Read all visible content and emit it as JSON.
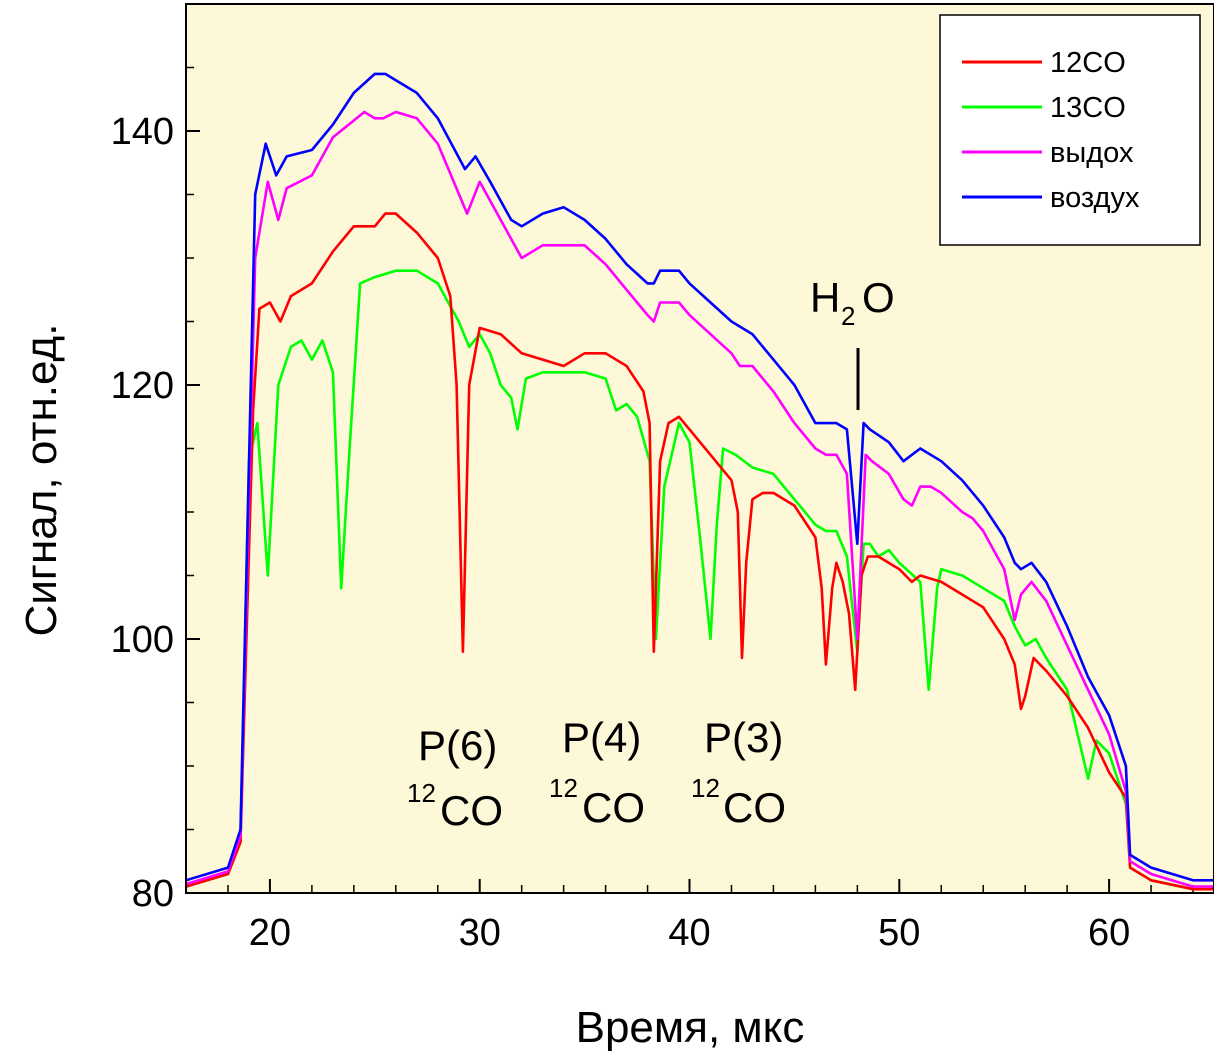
{
  "chart_data": {
    "type": "line",
    "xlabel": "Время, мкс",
    "ylabel": "Сигнал, отн.ед.",
    "xlim": [
      16,
      65
    ],
    "ylim": [
      80,
      150
    ],
    "xticks": [
      20,
      30,
      40,
      50,
      60
    ],
    "yticks": [
      80,
      100,
      120,
      140
    ],
    "background": "#fdf8d8",
    "legend_position": "top-right",
    "series": [
      {
        "name": "12CO",
        "color": "#ff0000",
        "x": [
          16,
          18,
          18.6,
          19.2,
          19.5,
          20,
          20.5,
          21,
          22,
          23,
          24,
          25,
          25.5,
          26,
          27,
          28,
          28.6,
          28.9,
          29.2,
          29.5,
          30,
          31,
          32,
          33,
          34,
          35,
          36,
          37,
          37.8,
          38.1,
          38.3,
          38.6,
          39,
          39.5,
          40,
          41,
          42,
          42.3,
          42.5,
          42.7,
          43,
          43.5,
          44,
          45,
          46,
          46.3,
          46.5,
          46.8,
          47,
          47.3,
          47.6,
          47.9,
          48.2,
          48.5,
          49,
          50,
          50.6,
          51,
          52,
          53,
          54,
          55,
          55.5,
          55.8,
          56,
          56.4,
          57,
          58,
          59,
          60,
          60.8,
          61,
          62,
          64,
          65
        ],
        "y": [
          80.5,
          81.5,
          84,
          118,
          126,
          126.5,
          125,
          127,
          128,
          130.5,
          132.5,
          132.5,
          133.5,
          133.5,
          132,
          130,
          127,
          120,
          99,
          120,
          124.5,
          124,
          122.5,
          122,
          121.5,
          122.5,
          122.5,
          121.5,
          119.5,
          117,
          99,
          114,
          117,
          117.5,
          116.5,
          114.5,
          112.5,
          110,
          98.5,
          106,
          111,
          111.5,
          111.5,
          110.5,
          108,
          104,
          98,
          104,
          106,
          104.5,
          102,
          96,
          105,
          106.5,
          106.5,
          105.5,
          104.5,
          105,
          104.5,
          103.5,
          102.5,
          100,
          98,
          94.5,
          95.5,
          98.5,
          97.5,
          95.5,
          93,
          89.5,
          87.5,
          82,
          81,
          80.3,
          80.3
        ]
      },
      {
        "name": "13CO",
        "color": "#00ff00",
        "x": [
          16,
          18,
          18.6,
          19,
          19.4,
          19.9,
          20.4,
          21,
          21.5,
          22,
          22.5,
          23,
          23.4,
          23.8,
          24.3,
          25,
          26,
          27,
          28,
          29,
          29.5,
          30,
          30.5,
          31,
          31.5,
          31.8,
          32.2,
          33,
          34,
          35,
          36,
          36.5,
          37,
          37.5,
          38.1,
          38.4,
          38.8,
          39.5,
          40,
          40.5,
          41,
          41.3,
          41.6,
          42.2,
          43,
          44,
          45,
          46,
          46.5,
          47,
          47.5,
          48,
          48.3,
          48.6,
          49,
          49.5,
          50,
          51,
          51.4,
          51.8,
          52,
          53,
          54,
          55,
          55.5,
          56,
          56.5,
          57,
          58,
          59,
          59.4,
          60,
          60.8,
          61,
          62,
          64,
          65
        ],
        "y": [
          80.5,
          81.5,
          84,
          114,
          117,
          105,
          120,
          123,
          123.5,
          122,
          123.5,
          121,
          104,
          115,
          128,
          128.5,
          129,
          129,
          128,
          125,
          123,
          124,
          122.5,
          120,
          119,
          116.5,
          120.5,
          121,
          121,
          121,
          120.5,
          118,
          118.5,
          117.5,
          114,
          100,
          112,
          117,
          115.5,
          108,
          100,
          109,
          115,
          114.5,
          113.5,
          113,
          111,
          109,
          108.5,
          108.5,
          106.5,
          99,
          107.5,
          107.5,
          106.5,
          107,
          106,
          104.5,
          96,
          104,
          105.5,
          105,
          104,
          103,
          101,
          99.5,
          100,
          98.5,
          96,
          89,
          92,
          91,
          87,
          82,
          81,
          80.3,
          80.3
        ]
      },
      {
        "name": "выдох",
        "color": "#ff00ff",
        "x": [
          16,
          18,
          18.6,
          19.3,
          19.9,
          20.4,
          20.8,
          22,
          23,
          24.5,
          25,
          25.4,
          26,
          27,
          28,
          29.4,
          30,
          30.5,
          31,
          32,
          33,
          34.5,
          35,
          36,
          37,
          38,
          38.3,
          38.6,
          39.5,
          40,
          41,
          42,
          42.4,
          43,
          44,
          45,
          46,
          46.5,
          47,
          47.5,
          48,
          48.4,
          48.7,
          49.5,
          50.2,
          50.6,
          51,
          51.5,
          52,
          53,
          53.5,
          54,
          55,
          55.5,
          55.8,
          56.3,
          57,
          58,
          59,
          60,
          60.8,
          61,
          62,
          64,
          65
        ],
        "y": [
          80.7,
          81.7,
          84.5,
          130,
          136,
          133,
          135.5,
          136.5,
          139.5,
          141.5,
          141,
          141,
          141.5,
          141,
          139,
          133.5,
          136,
          134.5,
          133,
          130,
          131,
          131,
          131,
          129.5,
          127.5,
          125.5,
          125,
          126.5,
          126.5,
          125.5,
          124,
          122.5,
          121.5,
          121.5,
          119.5,
          117,
          115,
          114.5,
          114.5,
          113,
          100,
          114.5,
          114,
          113,
          111,
          110.5,
          112,
          112,
          111.5,
          110,
          109.5,
          108.5,
          105.5,
          101.5,
          103.5,
          104.5,
          103,
          99.5,
          96,
          92.5,
          88,
          82.5,
          81.5,
          80.5,
          80.5
        ]
      },
      {
        "name": "воздух",
        "color": "#0000ff",
        "x": [
          16,
          18,
          18.6,
          19.3,
          19.8,
          20.3,
          20.8,
          22,
          23,
          24,
          25,
          25.5,
          26,
          27,
          28,
          29.3,
          29.8,
          30.5,
          31.5,
          32,
          33,
          34,
          35,
          36,
          37,
          38,
          38.3,
          38.6,
          39.5,
          40,
          41,
          42,
          42.5,
          43,
          44,
          45,
          46,
          46.5,
          47,
          47.5,
          48,
          48.3,
          48.6,
          49.5,
          50.2,
          50.6,
          51,
          52,
          53,
          54,
          55,
          55.5,
          55.8,
          56.3,
          57,
          58,
          59,
          60,
          60.8,
          61,
          62,
          64,
          65
        ],
        "y": [
          81,
          82,
          85,
          135,
          139,
          136.5,
          138,
          138.5,
          140.5,
          143,
          144.5,
          144.5,
          144,
          143,
          141,
          137,
          138,
          136,
          133,
          132.5,
          133.5,
          134,
          133,
          131.5,
          129.5,
          128,
          128,
          129,
          129,
          128,
          126.5,
          125,
          124.5,
          124,
          122,
          120,
          117,
          117,
          117,
          116.5,
          107.5,
          117,
          116.5,
          115.5,
          114,
          114.5,
          115,
          114,
          112.5,
          110.5,
          108,
          106,
          105.5,
          106,
          104.5,
          101,
          97,
          94,
          90,
          83,
          82,
          81,
          81
        ]
      }
    ],
    "annotations": [
      {
        "text": "P(6)",
        "sup": "12",
        "sub_text": "CO"
      },
      {
        "text": "P(4)",
        "sup": "12",
        "sub_text": "CO"
      },
      {
        "text": "P(3)",
        "sup": "12",
        "sub_text": "CO"
      }
    ],
    "h2o_label": {
      "main": "H",
      "sub": "2",
      "tail": "O"
    }
  }
}
